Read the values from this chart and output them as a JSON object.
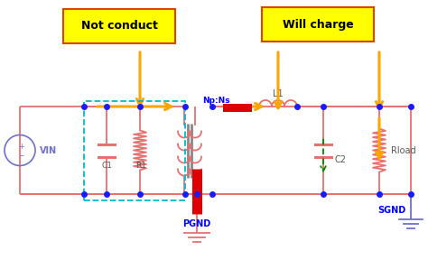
{
  "bg_color": "#ffffff",
  "wire_color": "#e87070",
  "red_elem": "#dd0000",
  "blue_dot": "#1a1aff",
  "orange": "#FFA500",
  "green": "#008800",
  "cyan": "#00bbcc",
  "label_not_conduct": "Not conduct",
  "label_will_charge": "Will charge",
  "label_vin": "VIN",
  "label_pgnd": "PGND",
  "label_sgnd": "SGND",
  "label_np_ns": "Np:Ns",
  "label_l1": "L1",
  "label_c1": "C1",
  "label_r1": "R1",
  "label_c2": "C2",
  "label_rload": "Rload",
  "box_yellow": "#FFFF00",
  "box_border": "#dd4400",
  "vin_color": "#7070cc",
  "sgnd_color": "#7070cc"
}
